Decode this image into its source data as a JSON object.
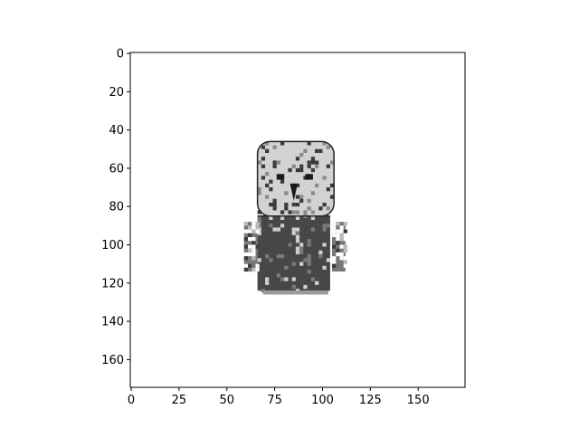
{
  "chart_data": {
    "type": "heatmap",
    "title": "",
    "xlabel": "",
    "ylabel": "",
    "colormap": "gray",
    "image_shape": [
      175,
      175
    ],
    "xlim": [
      -0.5,
      174.5
    ],
    "ylim": [
      174.5,
      -0.5
    ],
    "x_ticks": [
      0,
      25,
      50,
      75,
      100,
      125,
      150
    ],
    "x_tick_labels": [
      "0",
      "25",
      "50",
      "75",
      "100",
      "125",
      "150"
    ],
    "y_ticks": [
      0,
      20,
      40,
      60,
      80,
      100,
      120,
      140,
      160
    ],
    "y_tick_labels": [
      "0",
      "20",
      "40",
      "60",
      "80",
      "100",
      "120",
      "140",
      "160"
    ],
    "regions": [
      {
        "name": "head",
        "x_range": [
          66,
          106
        ],
        "y_range": [
          46,
          85
        ],
        "tone": "light-gray",
        "color": "#d2d2d2"
      },
      {
        "name": "body",
        "x_range": [
          66,
          104
        ],
        "y_range": [
          85,
          124
        ],
        "tone": "dark-gray",
        "color": "#474747"
      },
      {
        "name": "left-arm",
        "x_range": [
          59,
          66
        ],
        "y_range": [
          88,
          114
        ],
        "tone": "mixed",
        "color": "#777777"
      },
      {
        "name": "right-arm",
        "x_range": [
          105,
          112
        ],
        "y_range": [
          88,
          114
        ],
        "tone": "mixed",
        "color": "#777777"
      }
    ],
    "background_color": "#ffffff"
  }
}
